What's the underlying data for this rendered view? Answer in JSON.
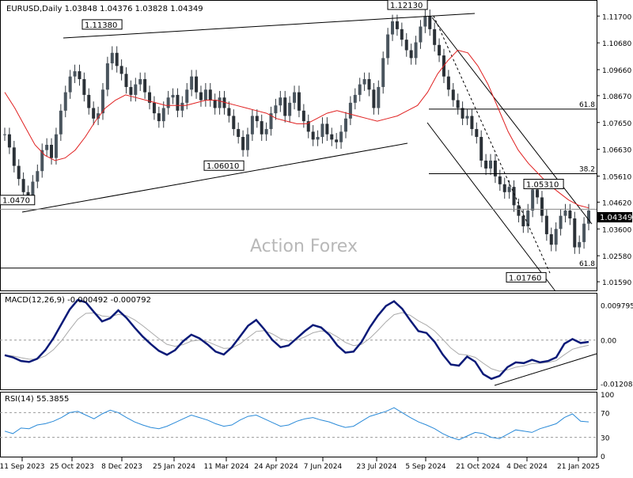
{
  "chart_data": [
    {
      "type": "candlestick",
      "title": "EURUSD,Daily  1.03848 1.04376 1.03828 1.04349",
      "watermark": "Action Forex",
      "current_price_label": "1.04349",
      "y_ticks": [
        "1.11700",
        "1.10680",
        "1.09660",
        "1.08670",
        "1.07650",
        "1.06630",
        "1.05610",
        "1.04620",
        "1.03600",
        "1.02580",
        "1.01590"
      ],
      "y_tick_values": [
        1.117,
        1.1068,
        1.0966,
        1.0867,
        1.0765,
        1.0663,
        1.0561,
        1.0462,
        1.036,
        1.0258,
        1.0159
      ],
      "ylim": [
        1.0129,
        1.1225
      ],
      "price_labels": [
        "1.11380",
        "1.12130",
        "1.06010",
        "1.05310",
        "1.01760",
        "1.0470"
      ],
      "price_label_values": [
        1.1138,
        1.1213,
        1.0601,
        1.0531,
        1.0176,
        1.047
      ],
      "fib_labels": [
        "61.8",
        "38.2",
        "61.8"
      ],
      "fib_values": [
        1.0816,
        1.057,
        1.0211
      ],
      "x_ticks": [
        "11 Sep 2023",
        "25 Oct 2023",
        "8 Dec 2023",
        "25 Jan 2024",
        "11 Mar 2024",
        "24 Apr 2024",
        "7 Jun 2024",
        "23 Jul 2024",
        "5 Sep 2024",
        "21 Oct 2024",
        "4 Dec 2024",
        "21 Jan 2025"
      ],
      "close_series": [
        1.072,
        1.067,
        1.06,
        1.055,
        1.05,
        1.048,
        1.054,
        1.058,
        1.066,
        1.068,
        1.063,
        1.072,
        1.081,
        1.088,
        1.094,
        1.096,
        1.093,
        1.087,
        1.082,
        1.078,
        1.08,
        1.089,
        1.099,
        1.103,
        1.098,
        1.095,
        1.09,
        1.087,
        1.091,
        1.093,
        1.088,
        1.084,
        1.08,
        1.077,
        1.082,
        1.086,
        1.087,
        1.081,
        1.084,
        1.089,
        1.094,
        1.088,
        1.085,
        1.089,
        1.085,
        1.082,
        1.086,
        1.082,
        1.079,
        1.074,
        1.071,
        1.066,
        1.072,
        1.079,
        1.077,
        1.072,
        1.074,
        1.08,
        1.083,
        1.086,
        1.079,
        1.084,
        1.088,
        1.081,
        1.077,
        1.073,
        1.07,
        1.071,
        1.076,
        1.072,
        1.07,
        1.069,
        1.073,
        1.078,
        1.084,
        1.087,
        1.091,
        1.093,
        1.089,
        1.082,
        1.09,
        1.101,
        1.11,
        1.115,
        1.112,
        1.108,
        1.104,
        1.101,
        1.107,
        1.113,
        1.117,
        1.112,
        1.106,
        1.102,
        1.094,
        1.089,
        1.085,
        1.082,
        1.078,
        1.079,
        1.074,
        1.071,
        1.062,
        1.059,
        1.062,
        1.056,
        1.053,
        1.05,
        1.052,
        1.045,
        1.041,
        1.037,
        1.043,
        1.051,
        1.048,
        1.041,
        1.034,
        1.03,
        1.036,
        1.041,
        1.043,
        1.04,
        1.029,
        1.031,
        1.038,
        1.043
      ],
      "ma_series": [
        1.088,
        1.082,
        1.075,
        1.068,
        1.064,
        1.062,
        1.063,
        1.066,
        1.071,
        1.077,
        1.082,
        1.085,
        1.087,
        1.086,
        1.085,
        1.084,
        1.083,
        1.083,
        1.083,
        1.084,
        1.085,
        1.085,
        1.084,
        1.083,
        1.082,
        1.081,
        1.08,
        1.078,
        1.077,
        1.076,
        1.076,
        1.078,
        1.08,
        1.081,
        1.08,
        1.079,
        1.078,
        1.077,
        1.078,
        1.079,
        1.081,
        1.083,
        1.088,
        1.095,
        1.1,
        1.104,
        1.103,
        1.098,
        1.091,
        1.082,
        1.073,
        1.066,
        1.061,
        1.057,
        1.053,
        1.05,
        1.047,
        1.045,
        1.044
      ],
      "macd": {
        "label": "MACD(12,26,9) -0.000492 -0.000792",
        "ticks": [
          "0.009795",
          "0.00",
          "-0.012081"
        ],
        "tick_values": [
          0.009795,
          0.0,
          -0.012081
        ],
        "ylim": [
          -0.0135,
          0.0125
        ],
        "line": [
          -0.0042,
          -0.0048,
          -0.0058,
          -0.0061,
          -0.0052,
          -0.0028,
          0.0005,
          0.0045,
          0.0085,
          0.0112,
          0.0105,
          0.0078,
          0.0052,
          0.0061,
          0.0083,
          0.0062,
          0.0035,
          0.001,
          -0.0011,
          -0.003,
          -0.0041,
          -0.0028,
          -0.0003,
          0.0015,
          0.0005,
          -0.0012,
          -0.0032,
          -0.004,
          -0.002,
          0.001,
          0.004,
          0.0056,
          0.003,
          0.0,
          -0.002,
          -0.0015,
          0.0005,
          0.0025,
          0.0042,
          0.0035,
          0.0015,
          -0.0015,
          -0.0035,
          -0.0032,
          -0.0005,
          0.0035,
          0.0068,
          0.0095,
          0.0108,
          0.0087,
          0.0055,
          0.0025,
          0.002,
          -0.0005,
          -0.004,
          -0.0068,
          -0.0071,
          -0.0046,
          -0.006,
          -0.0095,
          -0.0108,
          -0.01,
          -0.0075,
          -0.0062,
          -0.0064,
          -0.0055,
          -0.0062,
          -0.0058,
          -0.0048,
          -0.001,
          0.0003,
          -0.0008,
          -0.0005
        ]
      },
      "rsi": {
        "label": "RSI(14) 55.3855",
        "ticks": [
          "100",
          "70",
          "30",
          "0"
        ],
        "tick_values": [
          100,
          70,
          30,
          0
        ],
        "ylim": [
          0,
          100
        ],
        "series": [
          40,
          36,
          45,
          44,
          50,
          52,
          56,
          62,
          70,
          72,
          66,
          60,
          68,
          74,
          70,
          62,
          55,
          50,
          46,
          44,
          48,
          54,
          60,
          66,
          62,
          58,
          52,
          48,
          50,
          58,
          64,
          66,
          60,
          54,
          48,
          50,
          56,
          60,
          62,
          58,
          55,
          50,
          46,
          48,
          56,
          64,
          68,
          72,
          78,
          70,
          62,
          55,
          50,
          44,
          36,
          30,
          26,
          32,
          38,
          36,
          30,
          28,
          35,
          42,
          40,
          38,
          44,
          48,
          52,
          62,
          68,
          56,
          55
        ]
      }
    }
  ]
}
